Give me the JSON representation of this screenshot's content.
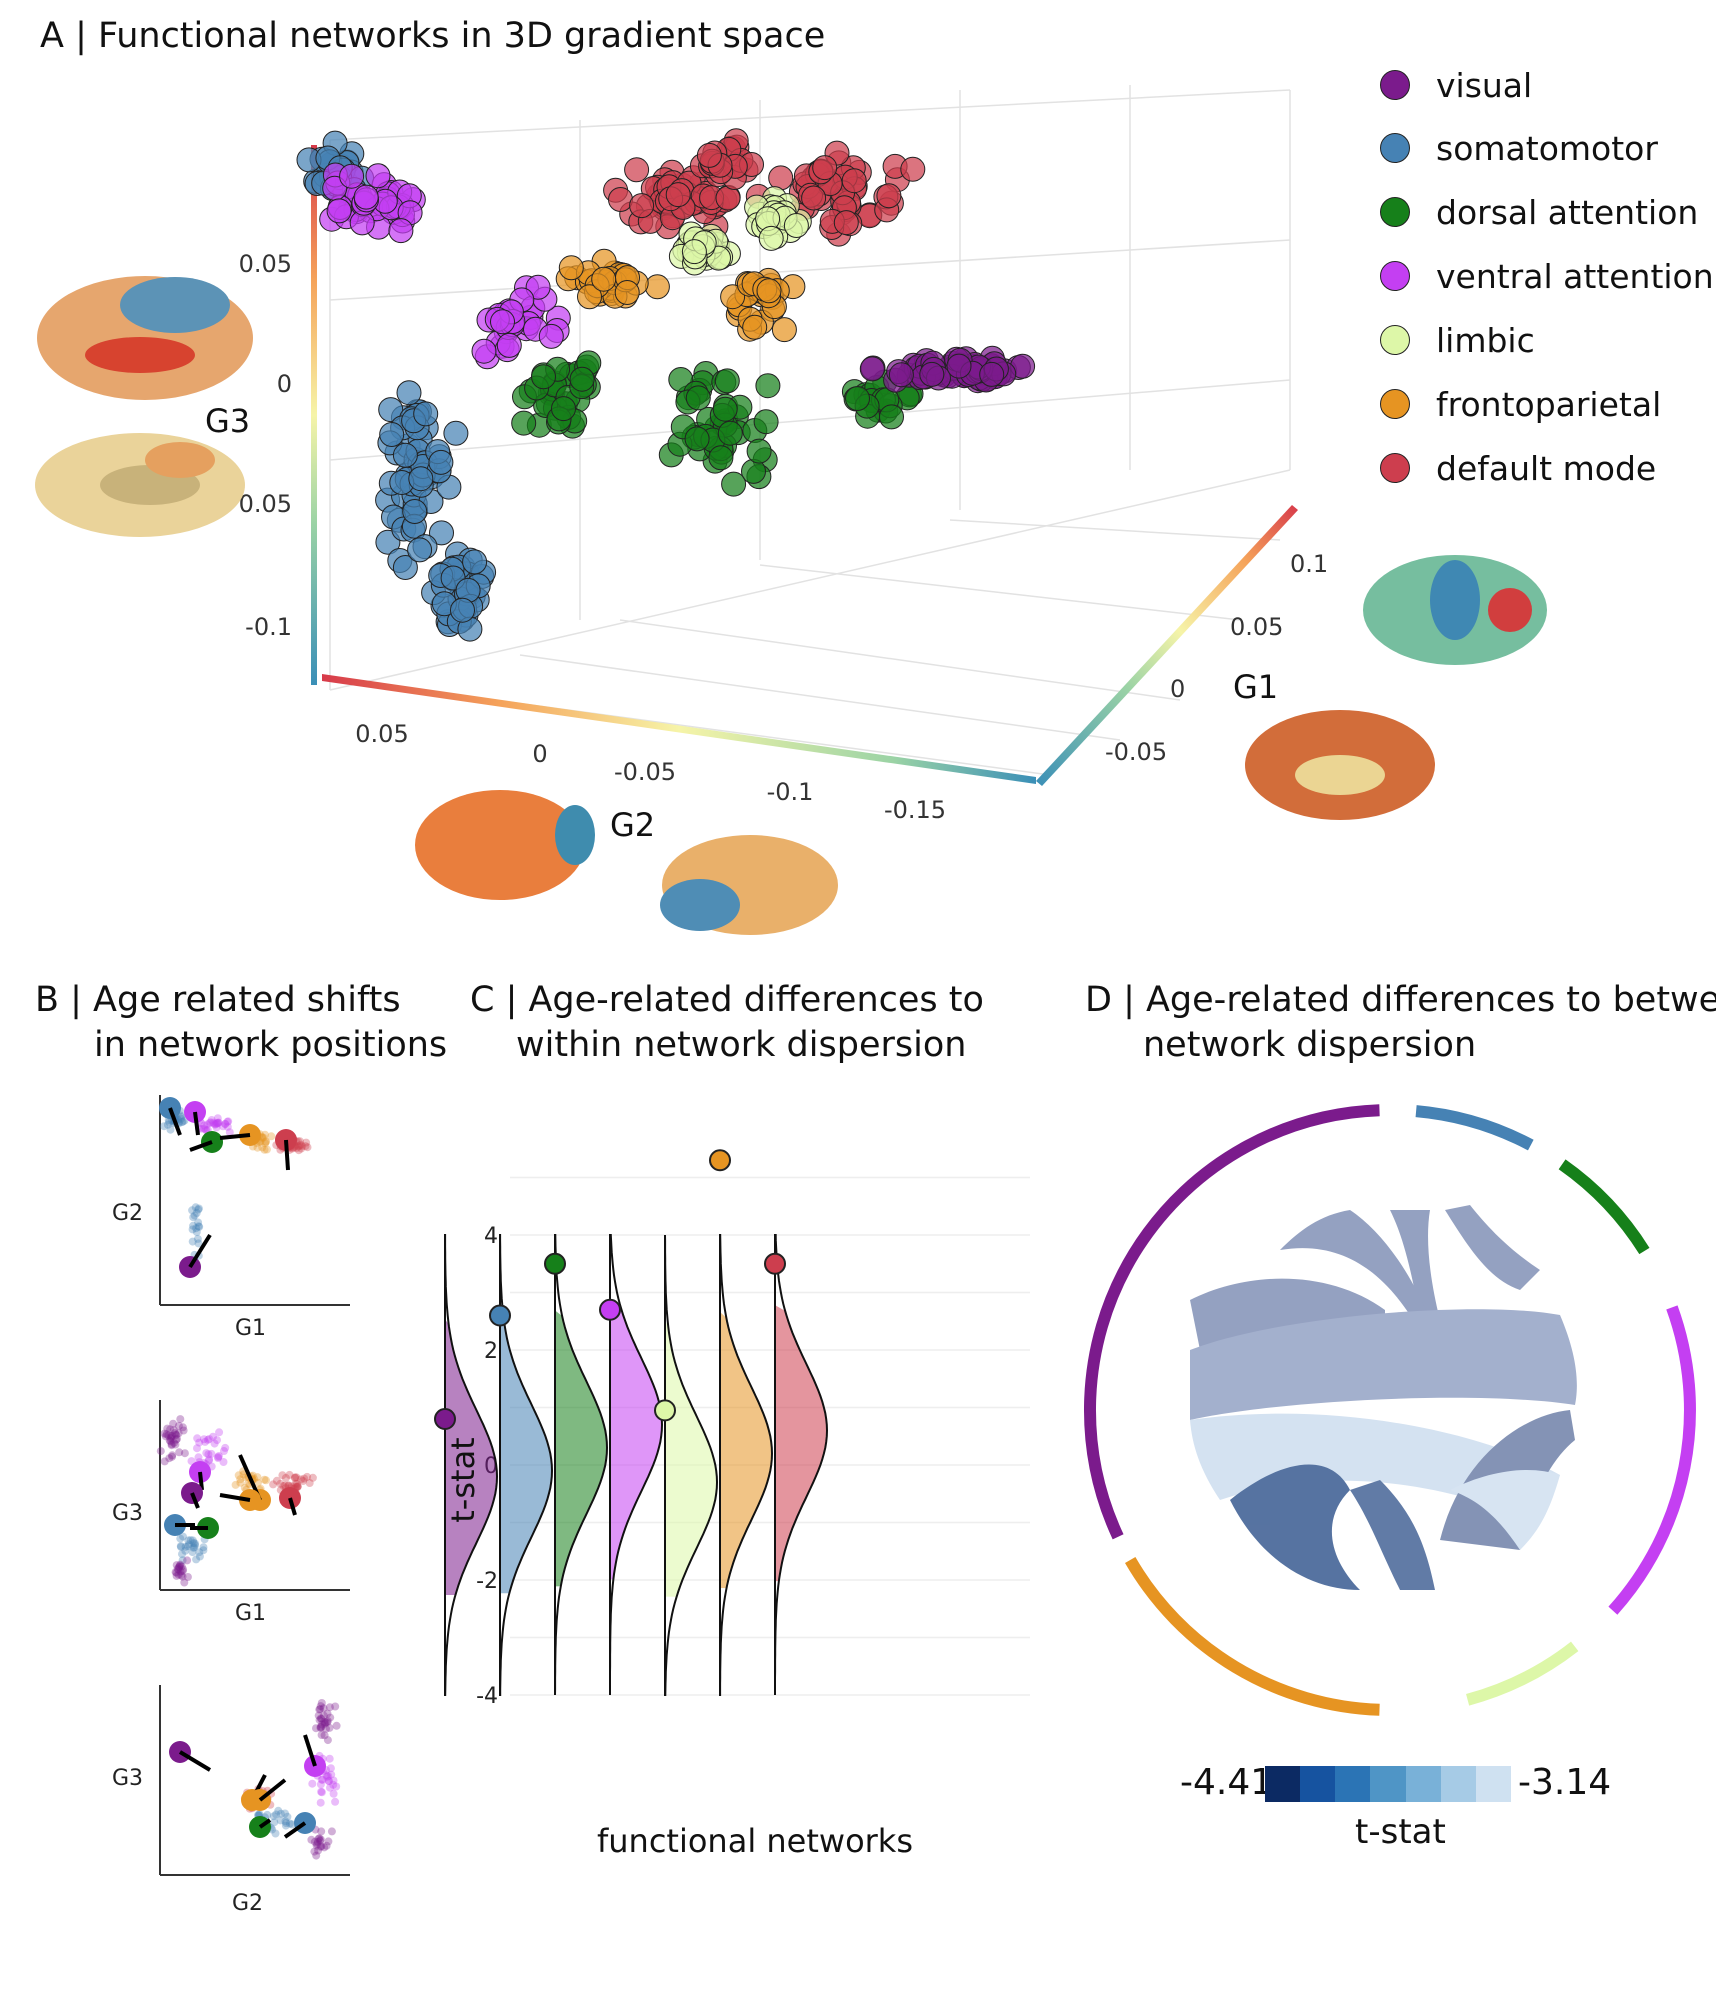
{
  "panel_a": {
    "title": "A |  Functional networks in 3D gradient space",
    "axes": {
      "g1": "G1",
      "g2": "G2",
      "g3": "G3"
    },
    "g3_ticks": [
      "0.05",
      "0",
      "0.05",
      "-0.1"
    ],
    "g2_ticks": [
      "0.05",
      "0",
      "-0.05",
      "-0.1",
      "-0.15"
    ],
    "g1_ticks": [
      "0.1",
      "0.05",
      "0",
      "-0.05"
    ]
  },
  "networks": [
    {
      "name": "visual",
      "color": "#7B1B8C"
    },
    {
      "name": "somatomotor",
      "color": "#4682B4"
    },
    {
      "name": "dorsal attention",
      "color": "#16801A"
    },
    {
      "name": "ventral attention",
      "color": "#C43FF2"
    },
    {
      "name": "limbic",
      "color": "#DDF7A8"
    },
    {
      "name": "frontoparietal",
      "color": "#E69422"
    },
    {
      "name": "default mode",
      "color": "#CD3E4E"
    }
  ],
  "panel_b": {
    "title_line1": "B |  Age related shifts",
    "title_line2": "in network positions",
    "plots": [
      {
        "xlabel": "G1",
        "ylabel": "G2"
      },
      {
        "xlabel": "G1",
        "ylabel": "G3"
      },
      {
        "xlabel": "G2",
        "ylabel": "G3"
      }
    ]
  },
  "panel_c": {
    "title_line1": "C | Age-related differences to",
    "title_line2": "within network dispersion",
    "ylabel": "t-stat",
    "xlabel": "functional networks",
    "y_ticks": [
      "4",
      "2",
      "0",
      "-2",
      "-4"
    ]
  },
  "panel_d": {
    "title_line1": "D | Age-related differences to between",
    "title_line2": "network dispersion",
    "colorbar_min": "-4.41",
    "colorbar_max": "-3.14",
    "colorbar_label": "t-stat",
    "colorbar_colors": [
      "#0C2A63",
      "#1653A0",
      "#2B74B5",
      "#4F95C6",
      "#79B1D8",
      "#A6CBE6",
      "#CFE1F1"
    ]
  },
  "chart_data": [
    {
      "type": "scatter",
      "title": "Functional networks in 3D gradient space",
      "xlabel": "G2",
      "ylabel": "G3",
      "zlabel": "G1",
      "xlim": [
        -0.17,
        0.08
      ],
      "ylim": [
        -0.12,
        0.09
      ],
      "zlim": [
        -0.07,
        0.12
      ]
    },
    {
      "type": "violin",
      "title": "Age-related differences to within network dispersion",
      "ylabel": "t-stat",
      "xlabel": "functional networks",
      "ylim": [
        -4,
        5.5
      ],
      "categories": [
        "visual",
        "somatomotor",
        "dorsal attention",
        "ventral attention",
        "limbic",
        "frontoparietal",
        "default mode"
      ],
      "observed": [
        0.8,
        2.6,
        3.5,
        2.7,
        0.95,
        5.3,
        3.5
      ],
      "null_center": [
        -0.2,
        -0.1,
        0.3,
        0.7,
        -0.3,
        0.2,
        0.6
      ]
    },
    {
      "type": "chord",
      "title": "Age-related differences to between network dispersion",
      "colorbar": {
        "min": -4.41,
        "max": -3.14,
        "label": "t-stat"
      }
    }
  ]
}
